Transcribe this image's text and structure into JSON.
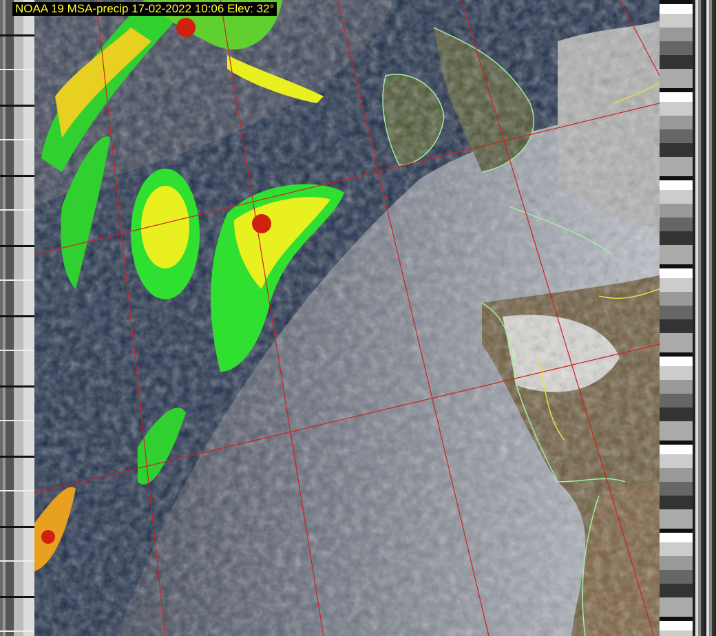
{
  "caption": "NOAA 19 MSA-precip 17-02-2022 10:06 Elev: 32°",
  "colors": {
    "ocean": "#1a2a4a",
    "cloud": "#b8bcc4",
    "land": "#6b5a3a",
    "graticule": "#d02020",
    "coastline": "#9ff0a0",
    "border": "#e6e640",
    "precip_light": "#30e030",
    "precip_moderate": "#f0f020",
    "precip_heavy": "#d02010",
    "caption_text": "#ffff33"
  }
}
